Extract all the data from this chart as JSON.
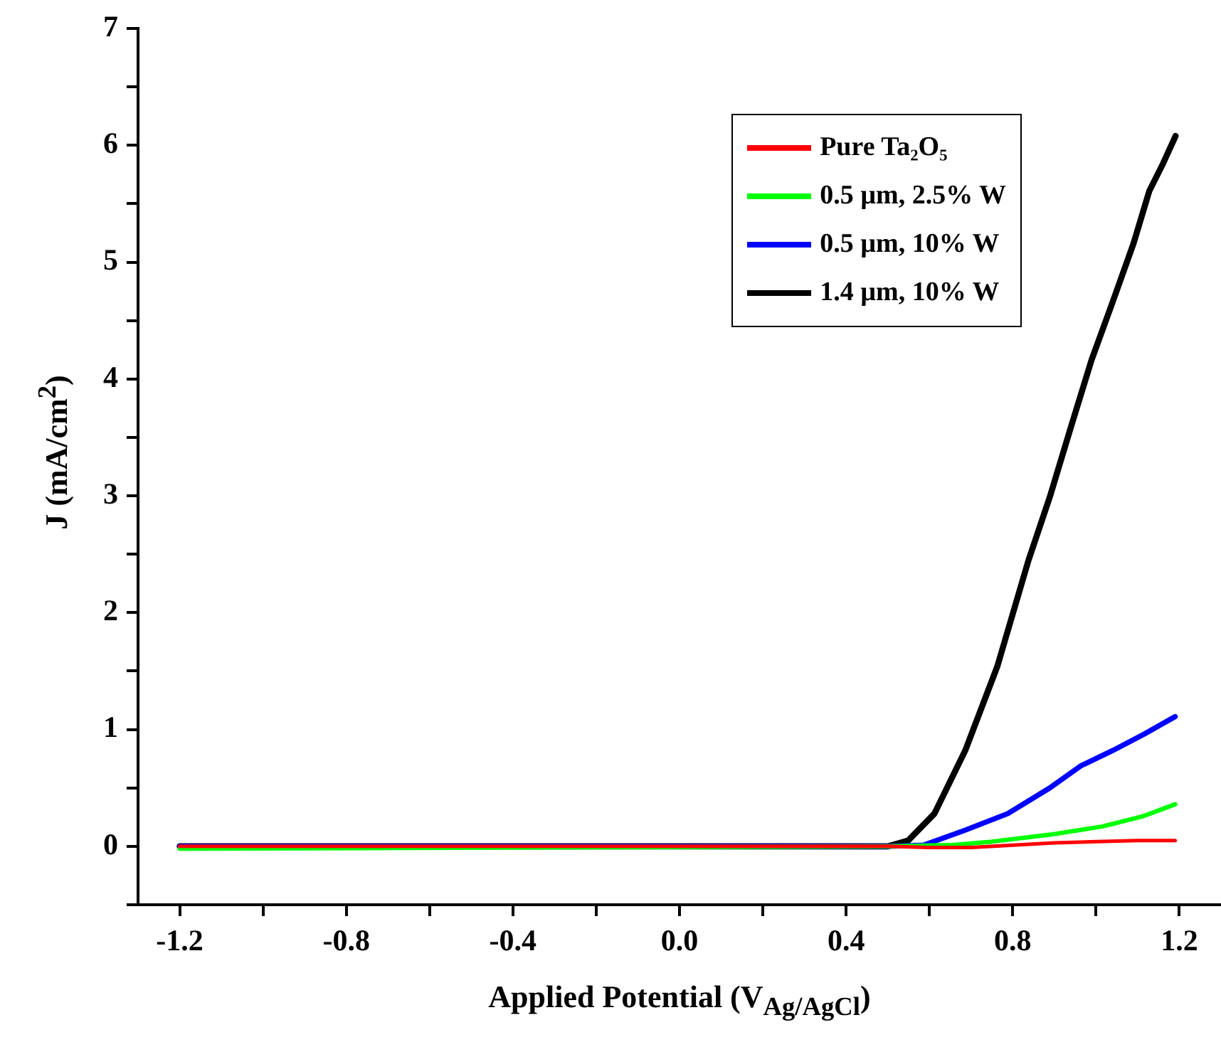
{
  "chart_data": {
    "type": "line",
    "xlabel": "Applied Potential (V$_{Ag/AgCl}$)",
    "ylabel": "J (mA/cm$^{2}$)",
    "xlim": [
      -1.3,
      1.3
    ],
    "ylim": [
      -0.5,
      7
    ],
    "xticks": [
      -1.2,
      {
        "value": -1.0,
        "label": null
      },
      -0.8,
      {
        "value": -0.6,
        "label": null
      },
      -0.4,
      {
        "value": -0.2,
        "label": null
      },
      {
        "value": 0,
        "label": "0.0"
      },
      {
        "value": 0.2,
        "label": null
      },
      0.4,
      {
        "value": 0.6,
        "label": null
      },
      0.8,
      {
        "value": 1.0,
        "label": null
      },
      1.2
    ],
    "yticks": [
      {
        "value": -0.5,
        "label": null
      },
      0,
      {
        "value": 0.5,
        "label": null
      },
      1,
      {
        "value": 1.5,
        "label": null
      },
      2,
      {
        "value": 2.5,
        "label": null
      },
      3,
      {
        "value": 3.5,
        "label": null
      },
      4,
      {
        "value": 4.5,
        "label": null
      },
      5,
      {
        "value": 5.5,
        "label": null
      },
      6,
      {
        "value": 6.5,
        "label": null
      },
      7
    ],
    "legend": "top right",
    "line_style": "solid",
    "series": [
      {
        "name": "Pure Ta₂O₅",
        "color": "#ff0000",
        "x": [
          -1.2,
          0.5,
          0.6,
          0.7,
          0.8,
          0.9,
          1.0,
          1.1,
          1.19
        ],
        "values": [
          0,
          0,
          -0.01,
          -0.01,
          0.01,
          0.03,
          0.04,
          0.05,
          0.05
        ]
      },
      {
        "name": "0.5 µm, 2.5% W",
        "color": "#00ff00",
        "x": [
          -1.2,
          -1.15,
          0.5,
          0.65,
          0.75,
          0.89,
          1.015,
          1.115,
          1.19
        ],
        "values": [
          -0.02,
          -0.02,
          0,
          0.01,
          0.04,
          0.1,
          0.17,
          0.26,
          0.36
        ]
      },
      {
        "name": "0.5 µm, 10% W",
        "color": "#0000ff",
        "x": [
          -1.2,
          0.5,
          0.586,
          0.687,
          0.788,
          0.889,
          0.964,
          1.04,
          1.115,
          1.19
        ],
        "values": [
          0,
          0,
          0.01,
          0.14,
          0.28,
          0.5,
          0.69,
          0.82,
          0.96,
          1.11
        ]
      },
      {
        "name": "1.4 µm, 10% W",
        "color": "#000000",
        "x": [
          -1.2,
          0.5,
          0.549,
          0.612,
          0.686,
          0.763,
          0.838,
          0.889,
          0.939,
          0.989,
          1.04,
          1.09,
          1.128,
          1.159,
          1.191
        ],
        "values": [
          0,
          0,
          0.05,
          0.28,
          0.82,
          1.54,
          2.45,
          2.99,
          3.58,
          4.16,
          4.66,
          5.16,
          5.61,
          5.83,
          6.08
        ]
      }
    ]
  }
}
